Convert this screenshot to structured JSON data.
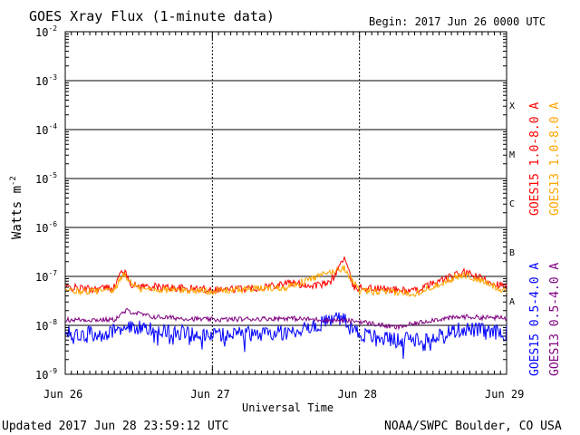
{
  "header": {
    "title": "GOES Xray Flux (1-minute data)",
    "begin": "Begin:  2017 Jun 26 0000 UTC"
  },
  "footer": {
    "updated": "Updated 2017 Jun 28 23:59:12 UTC",
    "credit": "NOAA/SWPC Boulder, CO USA"
  },
  "chart_data": {
    "type": "line",
    "title": "GOES Xray Flux (1-minute data)",
    "xlabel": "Universal Time",
    "ylabel": "Watts m",
    "ylabel_sup": "-2",
    "yscale": "log",
    "ylim": [
      1e-09,
      0.01
    ],
    "xlim": [
      "2017-06-26 00:00",
      "2017-06-29 00:00"
    ],
    "x_ticks": [
      "Jun 26",
      "Jun 27",
      "Jun 28",
      "Jun 29"
    ],
    "y_ticks": [
      {
        "base": "10",
        "exp": "-9"
      },
      {
        "base": "10",
        "exp": "-8"
      },
      {
        "base": "10",
        "exp": "-7"
      },
      {
        "base": "10",
        "exp": "-6"
      },
      {
        "base": "10",
        "exp": "-5"
      },
      {
        "base": "10",
        "exp": "-4"
      },
      {
        "base": "10",
        "exp": "-3"
      },
      {
        "base": "10",
        "exp": "-2"
      }
    ],
    "flare_classes": [
      "A",
      "B",
      "C",
      "M",
      "X"
    ],
    "grid": true,
    "legend_placement": "right",
    "series": [
      {
        "name": "GOES15 1.0-8.0 A",
        "color": "#ff0000",
        "points": [
          [
            "2017-06-26 00:00",
            6e-08
          ],
          [
            "2017-06-26 04:00",
            5.5e-08
          ],
          [
            "2017-06-26 08:00",
            6e-08
          ],
          [
            "2017-06-26 09:20",
            1.4e-07
          ],
          [
            "2017-06-26 11:00",
            6.5e-08
          ],
          [
            "2017-06-26 16:00",
            6e-08
          ],
          [
            "2017-06-26 22:00",
            5.5e-08
          ],
          [
            "2017-06-27 04:00",
            5.5e-08
          ],
          [
            "2017-06-27 08:00",
            6e-08
          ],
          [
            "2017-06-27 12:00",
            7.5e-08
          ],
          [
            "2017-06-27 16:00",
            6.5e-08
          ],
          [
            "2017-06-27 19:00",
            7e-08
          ],
          [
            "2017-06-27 20:00",
            1.1e-07
          ],
          [
            "2017-06-27 21:30",
            2.5e-07
          ],
          [
            "2017-06-27 23:00",
            6e-08
          ],
          [
            "2017-06-28 04:00",
            5.5e-08
          ],
          [
            "2017-06-28 09:00",
            5e-08
          ],
          [
            "2017-06-28 13:00",
            8e-08
          ],
          [
            "2017-06-28 17:00",
            1.2e-07
          ],
          [
            "2017-06-28 20:00",
            9e-08
          ],
          [
            "2017-06-29 00:00",
            6e-08
          ]
        ]
      },
      {
        "name": "GOES13 1.0-8.0 A",
        "color": "#ffa500",
        "points": [
          [
            "2017-06-26 00:00",
            5e-08
          ],
          [
            "2017-06-26 08:00",
            5e-08
          ],
          [
            "2017-06-26 09:20",
            1.1e-07
          ],
          [
            "2017-06-26 12:00",
            5.5e-08
          ],
          [
            "2017-06-27 00:00",
            5e-08
          ],
          [
            "2017-06-27 12:00",
            6e-08
          ],
          [
            "2017-06-27 21:30",
            1.5e-07
          ],
          [
            "2017-06-28 00:00",
            5e-08
          ],
          [
            "2017-06-28 09:00",
            4.5e-08
          ],
          [
            "2017-06-28 17:00",
            1.1e-07
          ],
          [
            "2017-06-29 00:00",
            5e-08
          ]
        ]
      },
      {
        "name": "GOES15 0.5-4.0 A",
        "color": "#0000ff",
        "points": [
          [
            "2017-06-26 00:00",
            7e-09
          ],
          [
            "2017-06-26 06:00",
            6.5e-09
          ],
          [
            "2017-06-26 10:00",
            1e-08
          ],
          [
            "2017-06-26 14:00",
            8e-09
          ],
          [
            "2017-06-27 00:00",
            6.5e-09
          ],
          [
            "2017-06-27 12:00",
            7e-09
          ],
          [
            "2017-06-27 21:30",
            1.5e-08
          ],
          [
            "2017-06-28 00:00",
            6.5e-09
          ],
          [
            "2017-06-28 06:00",
            5e-09
          ],
          [
            "2017-06-28 12:00",
            6e-09
          ],
          [
            "2017-06-28 17:00",
            8.5e-09
          ],
          [
            "2017-06-29 00:00",
            7e-09
          ]
        ]
      },
      {
        "name": "GOES13 0.5-4.0 A",
        "color": "#800080",
        "points": [
          [
            "2017-06-26 00:00",
            1.3e-08
          ],
          [
            "2017-06-26 08:00",
            1.3e-08
          ],
          [
            "2017-06-26 10:00",
            2e-08
          ],
          [
            "2017-06-26 14:00",
            1.5e-08
          ],
          [
            "2017-06-27 00:00",
            1.3e-08
          ],
          [
            "2017-06-27 12:00",
            1.4e-08
          ],
          [
            "2017-06-28 00:00",
            1.2e-08
          ],
          [
            "2017-06-28 06:00",
            9e-09
          ],
          [
            "2017-06-28 12:00",
            1.3e-08
          ],
          [
            "2017-06-28 17:00",
            1.5e-08
          ],
          [
            "2017-06-29 00:00",
            1.4e-08
          ]
        ]
      }
    ]
  }
}
